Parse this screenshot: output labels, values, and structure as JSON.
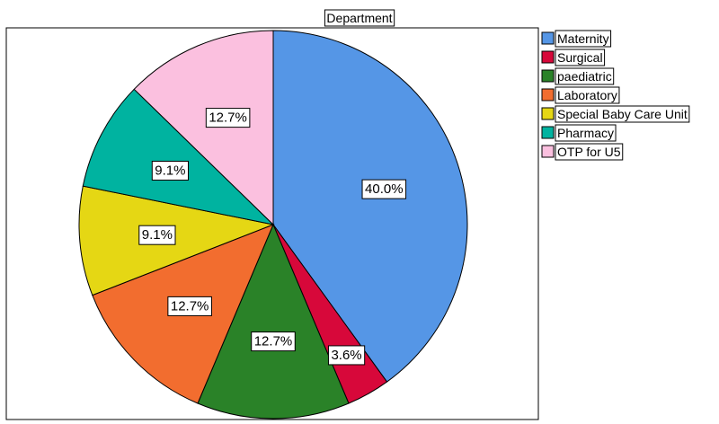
{
  "chart_data": {
    "type": "pie",
    "title": "Department",
    "categories": [
      "Maternity",
      "Surgical",
      "paediatric",
      "Laboratory",
      "Special Baby Care Unit",
      "Pharmacy",
      "OTP for U5"
    ],
    "values": [
      40.0,
      3.6,
      12.7,
      12.7,
      9.1,
      9.1,
      12.7
    ],
    "labels": [
      "40.0%",
      "3.6%",
      "12.7%",
      "12.7%",
      "9.1%",
      "9.1%",
      "12.7%"
    ],
    "colors": [
      "#5596e6",
      "#d7083a",
      "#2a8228",
      "#f26d2f",
      "#e5d714",
      "#00b3a0",
      "#fbc0df"
    ],
    "legend_position": "right",
    "start_angle": "12 o'clock",
    "direction": "clockwise"
  }
}
